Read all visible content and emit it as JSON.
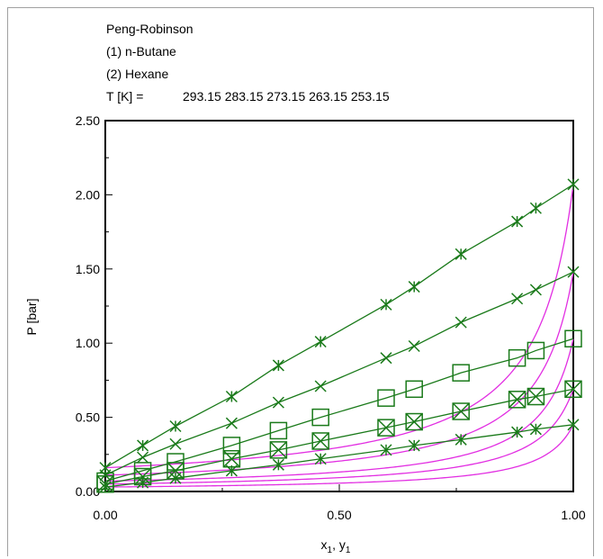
{
  "chart_data": {
    "type": "line",
    "annotations": [
      "Peng-Robinson",
      "(1) n-Butane",
      "(2) Hexane"
    ],
    "temperature_label": "T [K] =",
    "temperatures_text": "293.15 283.15 273.15 263.15 253.15",
    "temperatures_K": [
      293.15,
      283.15,
      273.15,
      263.15,
      253.15
    ],
    "xlabel_main": "x",
    "xlabel_sub1": "1",
    "xlabel_mid": ", y",
    "xlabel_sub2": "1",
    "ylabel": "P [bar]",
    "xlim": [
      0,
      1
    ],
    "ylim": [
      0,
      2.5
    ],
    "x_ticks": [
      "0.00",
      "0.50",
      "1.00"
    ],
    "y_ticks": [
      "0.00",
      "0.50",
      "1.00",
      "1.50",
      "2.00",
      "2.50"
    ],
    "bubble_line_color": "#1a7a1a",
    "dew_line_color": "#e22ee2",
    "series": [
      {
        "T": 293.15,
        "marker": "asterisk",
        "P_pure2": 0.16,
        "P_pure1": 2.07,
        "points": [
          [
            0.0,
            0.16
          ],
          [
            0.08,
            0.31
          ],
          [
            0.15,
            0.44
          ],
          [
            0.27,
            0.64
          ],
          [
            0.37,
            0.85
          ],
          [
            0.46,
            1.01
          ],
          [
            0.6,
            1.26
          ],
          [
            0.66,
            1.38
          ],
          [
            0.76,
            1.6
          ],
          [
            0.88,
            1.82
          ],
          [
            0.92,
            1.91
          ],
          [
            1.0,
            2.07
          ]
        ]
      },
      {
        "T": 283.15,
        "marker": "x",
        "P_pure2": 0.11,
        "P_pure1": 1.48,
        "points": [
          [
            0.0,
            0.11
          ],
          [
            0.08,
            0.23
          ],
          [
            0.15,
            0.32
          ],
          [
            0.27,
            0.46
          ],
          [
            0.37,
            0.6
          ],
          [
            0.46,
            0.71
          ],
          [
            0.6,
            0.9
          ],
          [
            0.66,
            0.98
          ],
          [
            0.76,
            1.14
          ],
          [
            0.88,
            1.3
          ],
          [
            0.92,
            1.36
          ],
          [
            1.0,
            1.48
          ]
        ]
      },
      {
        "T": 273.15,
        "marker": "square",
        "P_pure2": 0.07,
        "P_pure1": 1.03,
        "points": [
          [
            0.0,
            0.07
          ],
          [
            0.08,
            0.14
          ],
          [
            0.15,
            0.2
          ],
          [
            0.27,
            0.31
          ],
          [
            0.37,
            0.41
          ],
          [
            0.46,
            0.5
          ],
          [
            0.6,
            0.63
          ],
          [
            0.66,
            0.69
          ],
          [
            0.76,
            0.8
          ],
          [
            0.88,
            0.9
          ],
          [
            0.92,
            0.95
          ],
          [
            1.0,
            1.03
          ]
        ]
      },
      {
        "T": 263.15,
        "marker": "square-x",
        "P_pure2": 0.05,
        "P_pure1": 0.69,
        "points": [
          [
            0.0,
            0.05
          ],
          [
            0.08,
            0.1
          ],
          [
            0.15,
            0.14
          ],
          [
            0.27,
            0.22
          ],
          [
            0.37,
            0.28
          ],
          [
            0.46,
            0.34
          ],
          [
            0.6,
            0.43
          ],
          [
            0.66,
            0.47
          ],
          [
            0.76,
            0.54
          ],
          [
            0.88,
            0.62
          ],
          [
            0.92,
            0.64
          ],
          [
            1.0,
            0.69
          ]
        ]
      },
      {
        "T": 253.15,
        "marker": "asterisk",
        "P_pure2": 0.03,
        "P_pure1": 0.45,
        "points": [
          [
            0.0,
            0.03
          ],
          [
            0.08,
            0.06
          ],
          [
            0.15,
            0.09
          ],
          [
            0.27,
            0.14
          ],
          [
            0.37,
            0.18
          ],
          [
            0.46,
            0.22
          ],
          [
            0.6,
            0.28
          ],
          [
            0.66,
            0.31
          ],
          [
            0.76,
            0.35
          ],
          [
            0.88,
            0.4
          ],
          [
            0.92,
            0.42
          ],
          [
            1.0,
            0.45
          ]
        ]
      }
    ]
  }
}
